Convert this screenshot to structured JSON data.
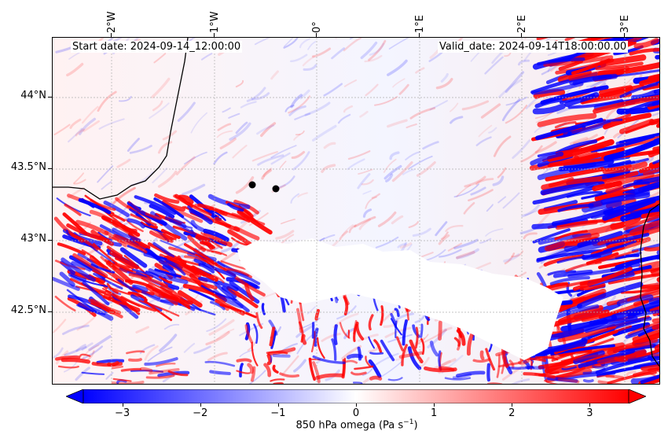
{
  "map": {
    "start_date_label": "Start date: 2024-09-14_12:00:00",
    "valid_date_label": "Valid_date: 2024-09-14T18:00:00.00",
    "longitude_labels": [
      "2°W",
      "1°W",
      "0°",
      "1°E",
      "2°E",
      "3°E"
    ],
    "latitude_labels": [
      "44°N",
      "43.5°N",
      "43°N",
      "42.5°N"
    ],
    "field": "850 hPa omega",
    "colormap": "bwr",
    "negative_color": "#0000ff",
    "positive_color": "#ff0000",
    "neutral_color": "#ffffff",
    "masked_color": "#ffffff",
    "coastline_color": "#000000",
    "marker_color": "#000000",
    "gridlines": true
  },
  "colorbar": {
    "min": -3.5,
    "max": 3.5,
    "extend": "both",
    "ticks": [
      "−3",
      "−2",
      "−1",
      "0",
      "1",
      "2",
      "3"
    ],
    "tick_values": [
      -3,
      -2,
      -1,
      0,
      1,
      2,
      3
    ],
    "label_text": "850 hPa omega (Pa s",
    "label_exponent": "−1",
    "label_close": ")"
  }
}
